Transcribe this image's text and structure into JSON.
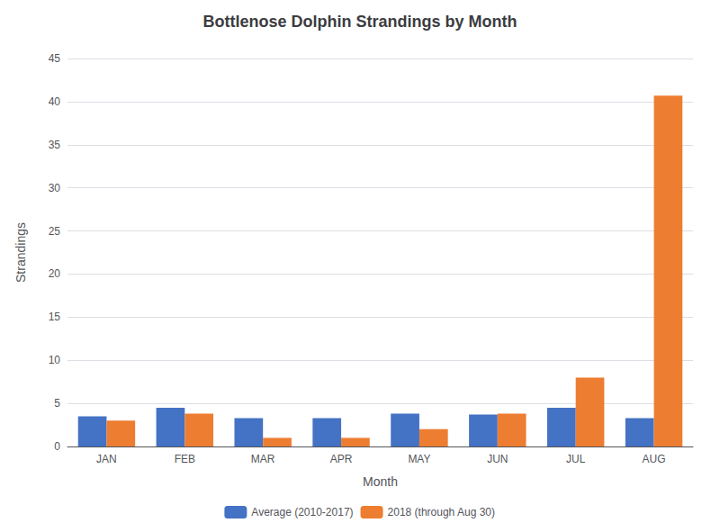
{
  "chart_data": {
    "type": "bar",
    "title": "Bottlenose Dolphin Strandings by Month",
    "xlabel": "Month",
    "ylabel": "Strandings",
    "categories": [
      "JAN",
      "FEB",
      "MAR",
      "APR",
      "MAY",
      "JUN",
      "JUL",
      "AUG"
    ],
    "series": [
      {
        "name": "Average (2010-2017)",
        "color": "#4472C4",
        "values": [
          3.5,
          4.5,
          3.3,
          3.3,
          3.8,
          3.7,
          4.5,
          3.3
        ]
      },
      {
        "name": "2018 (through Aug 30)",
        "color": "#ED7D31",
        "values": [
          3.0,
          3.8,
          1.0,
          1.0,
          2.0,
          3.8,
          8.0,
          40.7
        ]
      }
    ],
    "ylim": [
      0,
      45
    ],
    "yticks": [
      0,
      5,
      10,
      15,
      20,
      25,
      30,
      35,
      40,
      45
    ],
    "grid": true,
    "legend": "bottom"
  }
}
